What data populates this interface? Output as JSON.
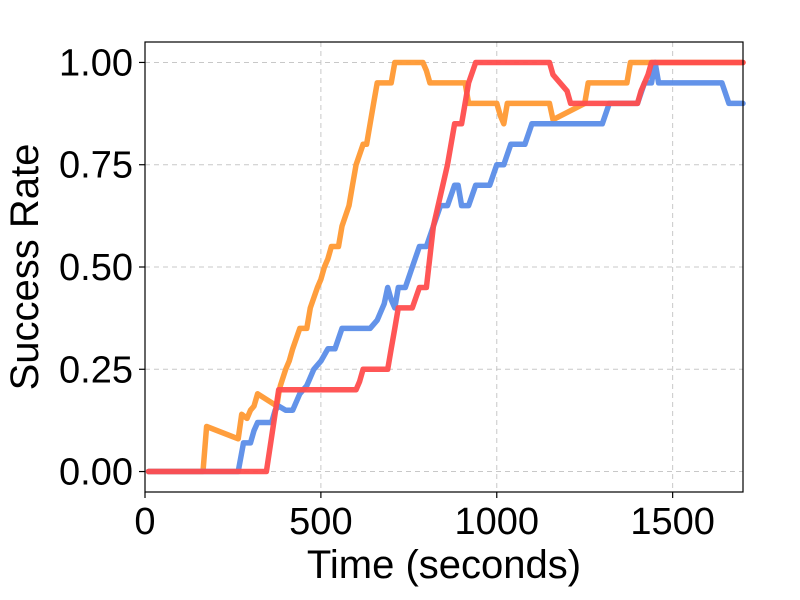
{
  "chart_data": {
    "type": "line",
    "xlabel": "Time (seconds)",
    "ylabel": "Success Rate",
    "xlim": [
      0,
      1700
    ],
    "ylim": [
      -0.05,
      1.05
    ],
    "xticks": [
      0,
      500,
      1000,
      1500
    ],
    "xtick_labels": [
      "0",
      "500",
      "1000",
      "1500"
    ],
    "yticks": [
      0.0,
      0.25,
      0.5,
      0.75,
      1.0
    ],
    "ytick_labels": [
      "0.00",
      "0.25",
      "0.50",
      "0.75",
      "1.00"
    ],
    "grid": true,
    "series": [
      {
        "color": "#ff9933",
        "x": [
          10,
          165,
          175,
          265,
          275,
          290,
          300,
          310,
          320,
          375,
          380,
          385,
          400,
          410,
          420,
          440,
          450,
          460,
          470,
          490,
          500,
          510,
          520,
          530,
          540,
          550,
          560,
          580,
          590,
          600,
          620,
          630,
          640,
          650,
          660,
          670,
          680,
          690,
          700,
          710,
          720,
          735,
          790,
          800,
          810,
          830,
          910,
          920,
          1000,
          1010,
          1020,
          1030,
          1100,
          1110,
          1150,
          1160,
          1250,
          1260,
          1370,
          1380,
          1700
        ],
        "y": [
          0,
          0,
          0.11,
          0.08,
          0.14,
          0.13,
          0.15,
          0.16,
          0.19,
          0.16,
          0.19,
          0.21,
          0.25,
          0.27,
          0.3,
          0.35,
          0.35,
          0.35,
          0.4,
          0.45,
          0.47,
          0.5,
          0.52,
          0.55,
          0.55,
          0.55,
          0.6,
          0.65,
          0.7,
          0.75,
          0.8,
          0.8,
          0.85,
          0.9,
          0.95,
          0.95,
          0.95,
          0.95,
          0.95,
          1,
          1,
          1,
          1,
          0.98,
          0.95,
          0.95,
          0.95,
          0.9,
          0.9,
          0.87,
          0.85,
          0.9,
          0.9,
          0.9,
          0.9,
          0.86,
          0.9,
          0.95,
          0.95,
          1,
          1
        ]
      },
      {
        "color": "#5b8de8",
        "x": [
          10,
          265,
          280,
          290,
          300,
          310,
          320,
          360,
          370,
          380,
          400,
          420,
          440,
          460,
          480,
          500,
          520,
          540,
          560,
          580,
          600,
          620,
          640,
          660,
          680,
          690,
          700,
          710,
          720,
          740,
          760,
          780,
          800,
          820,
          840,
          860,
          880,
          890,
          900,
          920,
          940,
          960,
          980,
          1000,
          1020,
          1040,
          1060,
          1080,
          1100,
          1120,
          1140,
          1160,
          1200,
          1250,
          1300,
          1320,
          1340,
          1360,
          1380,
          1400,
          1420,
          1440,
          1450,
          1460,
          1480,
          1500,
          1520,
          1540,
          1560,
          1580,
          1600,
          1620,
          1640,
          1660,
          1680,
          1700
        ],
        "y": [
          0,
          0,
          0.07,
          0.07,
          0.07,
          0.1,
          0.12,
          0.12,
          0.15,
          0.16,
          0.15,
          0.15,
          0.19,
          0.21,
          0.25,
          0.27,
          0.3,
          0.3,
          0.35,
          0.35,
          0.35,
          0.35,
          0.35,
          0.37,
          0.41,
          0.45,
          0.42,
          0.4,
          0.45,
          0.45,
          0.5,
          0.55,
          0.55,
          0.6,
          0.65,
          0.65,
          0.7,
          0.7,
          0.65,
          0.65,
          0.7,
          0.7,
          0.7,
          0.75,
          0.75,
          0.8,
          0.8,
          0.8,
          0.85,
          0.85,
          0.85,
          0.85,
          0.85,
          0.85,
          0.85,
          0.9,
          0.9,
          0.9,
          0.9,
          0.9,
          0.95,
          0.95,
          1,
          0.95,
          0.95,
          0.95,
          0.95,
          0.95,
          0.95,
          0.95,
          0.95,
          0.95,
          0.95,
          0.9,
          0.9,
          0.9
        ]
      },
      {
        "color": "#ff4d4d",
        "x": [
          10,
          345,
          380,
          400,
          420,
          500,
          600,
          610,
          620,
          690,
          700,
          710,
          720,
          740,
          760,
          780,
          800,
          820,
          860,
          880,
          900,
          920,
          940,
          950,
          1000,
          1050,
          1100,
          1150,
          1160,
          1200,
          1210,
          1220,
          1300,
          1310,
          1320,
          1400,
          1410,
          1420,
          1430,
          1440,
          1450,
          1460,
          1500,
          1550,
          1600,
          1650,
          1700
        ],
        "y": [
          0,
          0,
          0.2,
          0.2,
          0.2,
          0.2,
          0.2,
          0.22,
          0.25,
          0.25,
          0.3,
          0.35,
          0.4,
          0.4,
          0.4,
          0.45,
          0.45,
          0.6,
          0.75,
          0.85,
          0.85,
          0.95,
          1,
          1,
          1,
          1,
          1,
          1,
          0.97,
          0.93,
          0.9,
          0.9,
          0.9,
          0.9,
          0.9,
          0.9,
          0.93,
          0.95,
          0.97,
          1,
          1,
          1,
          1,
          1,
          1,
          1,
          1
        ]
      }
    ]
  }
}
